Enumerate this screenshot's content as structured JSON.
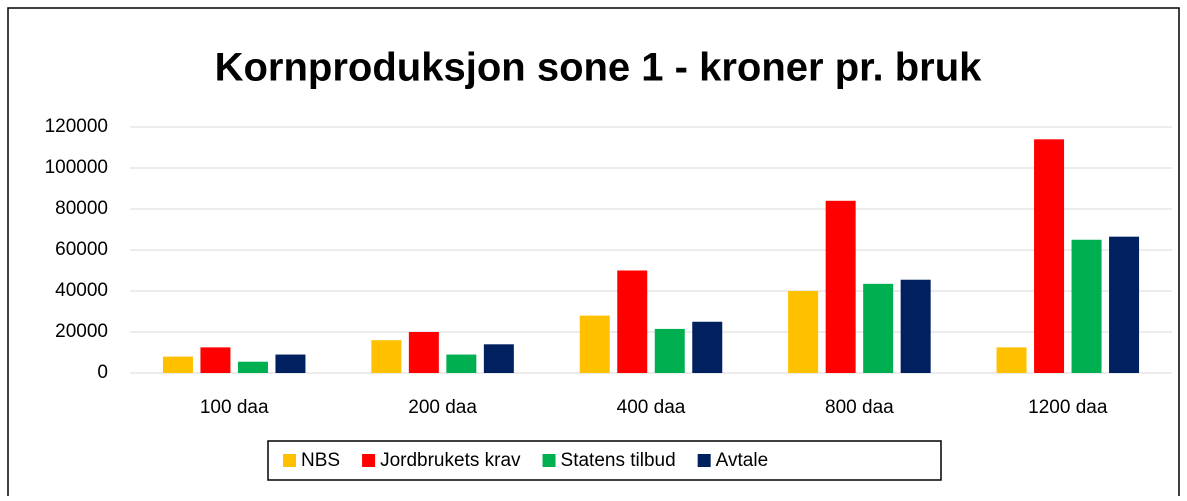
{
  "chart_data": {
    "type": "bar",
    "title": "Kornproduksjon sone 1 - kroner pr. bruk",
    "categories": [
      "100 daa",
      "200 daa",
      "400 daa",
      "800 daa",
      "1200 daa"
    ],
    "series": [
      {
        "name": "NBS",
        "color": "#ffc000",
        "values": [
          8000,
          16000,
          28000,
          40000,
          12500
        ]
      },
      {
        "name": "Jordbrukets krav",
        "color": "#ff0000",
        "values": [
          12500,
          20000,
          50000,
          84000,
          114000
        ]
      },
      {
        "name": "Statens tilbud",
        "color": "#00b050",
        "values": [
          5500,
          9000,
          21500,
          43500,
          65000
        ]
      },
      {
        "name": "Avtale",
        "color": "#002060",
        "values": [
          9000,
          14000,
          25000,
          45500,
          66500
        ]
      }
    ],
    "ylim": [
      0,
      120000
    ],
    "yticks": [
      0,
      20000,
      40000,
      60000,
      80000,
      100000,
      120000
    ],
    "grid": true,
    "legend": "bottom"
  }
}
